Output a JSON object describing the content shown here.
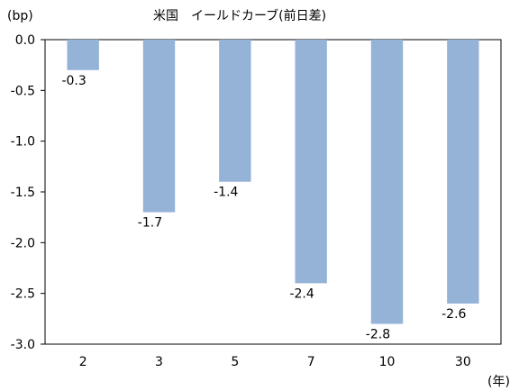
{
  "chart_data": {
    "type": "bar",
    "title": "米国　イールドカーブ(前日差)",
    "unit_y": "(bp)",
    "unit_x": "(年)",
    "categories": [
      "2",
      "3",
      "5",
      "7",
      "10",
      "30"
    ],
    "values": [
      -0.3,
      -1.7,
      -1.4,
      -2.4,
      -2.8,
      -2.6
    ],
    "value_labels": [
      "-0.3",
      "-1.7",
      "-1.4",
      "-2.4",
      "-2.8",
      "-2.6"
    ],
    "ylim": [
      -3.0,
      0.0
    ],
    "yticks": [
      "0.0",
      "-0.5",
      "-1.0",
      "-1.5",
      "-2.0",
      "-2.5",
      "-3.0"
    ],
    "ytick_values": [
      0.0,
      -0.5,
      -1.0,
      -1.5,
      -2.0,
      -2.5,
      -3.0
    ],
    "grid": false,
    "legend": "none",
    "bar_color": "#95B3D7"
  }
}
